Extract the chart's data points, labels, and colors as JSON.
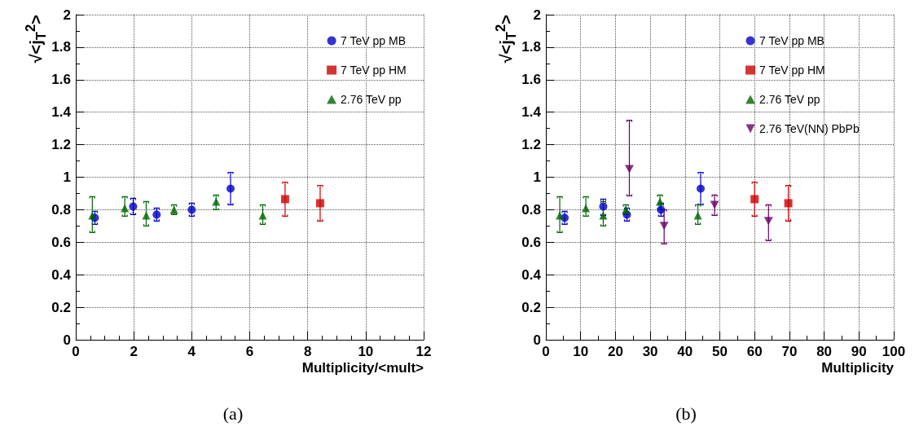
{
  "chart_data": [
    {
      "type": "scatter",
      "xlabel": "Multiplicity/<mult>",
      "ylabel": "√<j$_{T}$$^{2}$>",
      "xlim": [
        0,
        12
      ],
      "xticks": [
        0,
        2,
        4,
        6,
        8,
        10,
        12
      ],
      "ylim": [
        0,
        2
      ],
      "yticks": [
        0,
        0.2,
        0.4,
        0.6,
        0.8,
        1,
        1.2,
        1.4,
        1.6,
        1.8,
        2
      ],
      "grid": true,
      "legend": "top right",
      "annotations": [
        "(a)"
      ],
      "series": [
        {
          "name": "7 TeV pp MB",
          "color": "#0000cc",
          "marker": "circle",
          "x": [
            0.66,
            1.98,
            2.79,
            4.0,
            5.34
          ],
          "values": [
            0.75,
            0.82,
            0.77,
            0.8,
            0.93
          ],
          "errors": [
            0.04,
            0.05,
            0.04,
            0.04,
            [
              0.83,
              1.03
            ]
          ]
        },
        {
          "name": "7 TeV pp HM",
          "color": "#cc0000",
          "marker": "square",
          "x": [
            7.22,
            8.43
          ],
          "values": [
            0.865,
            0.84
          ],
          "errors": [
            [
              0.76,
              0.97
            ],
            [
              0.73,
              0.95
            ]
          ]
        },
        {
          "name": "2.76 TeV pp",
          "color": "#006600",
          "marker": "triangle",
          "x": [
            0.57,
            1.69,
            2.43,
            3.39,
            4.84,
            6.45
          ],
          "values": [
            0.765,
            0.81,
            0.765,
            0.8,
            0.85,
            0.765
          ],
          "errors": [
            [
              0.66,
              0.88
            ],
            [
              0.76,
              0.88
            ],
            [
              0.7,
              0.85
            ],
            [
              0.77,
              0.83
            ],
            [
              0.8,
              0.89
            ],
            [
              0.71,
              0.83
            ]
          ]
        }
      ]
    },
    {
      "type": "scatter",
      "xlabel": "Multiplicity",
      "ylabel": "√<j$_{T}$$^{2}$>",
      "xlim": [
        0,
        100
      ],
      "xticks": [
        0,
        10,
        20,
        30,
        40,
        50,
        60,
        70,
        80,
        90,
        100
      ],
      "ylim": [
        0,
        2
      ],
      "yticks": [
        0,
        0.2,
        0.4,
        0.6,
        0.8,
        1,
        1.2,
        1.4,
        1.6,
        1.8,
        2
      ],
      "grid": true,
      "legend": "top right",
      "annotations": [
        "(b)"
      ],
      "series": [
        {
          "name": "7 TeV pp MB",
          "color": "#0000cc",
          "marker": "circle",
          "x": [
            5.4,
            16.5,
            23.3,
            33.1,
            44.5
          ],
          "values": [
            0.75,
            0.82,
            0.77,
            0.8,
            0.93
          ],
          "errors": [
            0.04,
            [
              0.765,
              0.865
            ],
            0.04,
            0.04,
            [
              0.83,
              1.03
            ]
          ]
        },
        {
          "name": "7 TeV pp HM",
          "color": "#cc0000",
          "marker": "square",
          "x": [
            60.0,
            69.7
          ],
          "values": [
            0.865,
            0.84
          ],
          "errors": [
            [
              0.76,
              0.97
            ],
            [
              0.73,
              0.95
            ]
          ]
        },
        {
          "name": "2.76 TeV pp",
          "color": "#006600",
          "marker": "triangle",
          "x": [
            4.0,
            11.5,
            16.5,
            23.0,
            32.8,
            43.7
          ],
          "values": [
            0.765,
            0.81,
            0.765,
            0.8,
            0.85,
            0.765
          ],
          "errors": [
            [
              0.66,
              0.88
            ],
            [
              0.76,
              0.88
            ],
            [
              0.7,
              0.85
            ],
            [
              0.77,
              0.83
            ],
            [
              0.8,
              0.89
            ],
            [
              0.71,
              0.83
            ]
          ]
        },
        {
          "name": "2.76 TeV(NN) PbPb",
          "color": "#660066",
          "marker": "triangle-down",
          "x": [
            24.0,
            34.0,
            48.5,
            64.0
          ],
          "values": [
            1.05,
            0.7,
            0.83,
            0.73
          ],
          "errors": [
            [
              0.885,
              1.35
            ],
            [
              0.59,
              0.8
            ],
            [
              0.765,
              0.89
            ],
            [
              0.61,
              0.83
            ]
          ]
        }
      ]
    }
  ]
}
